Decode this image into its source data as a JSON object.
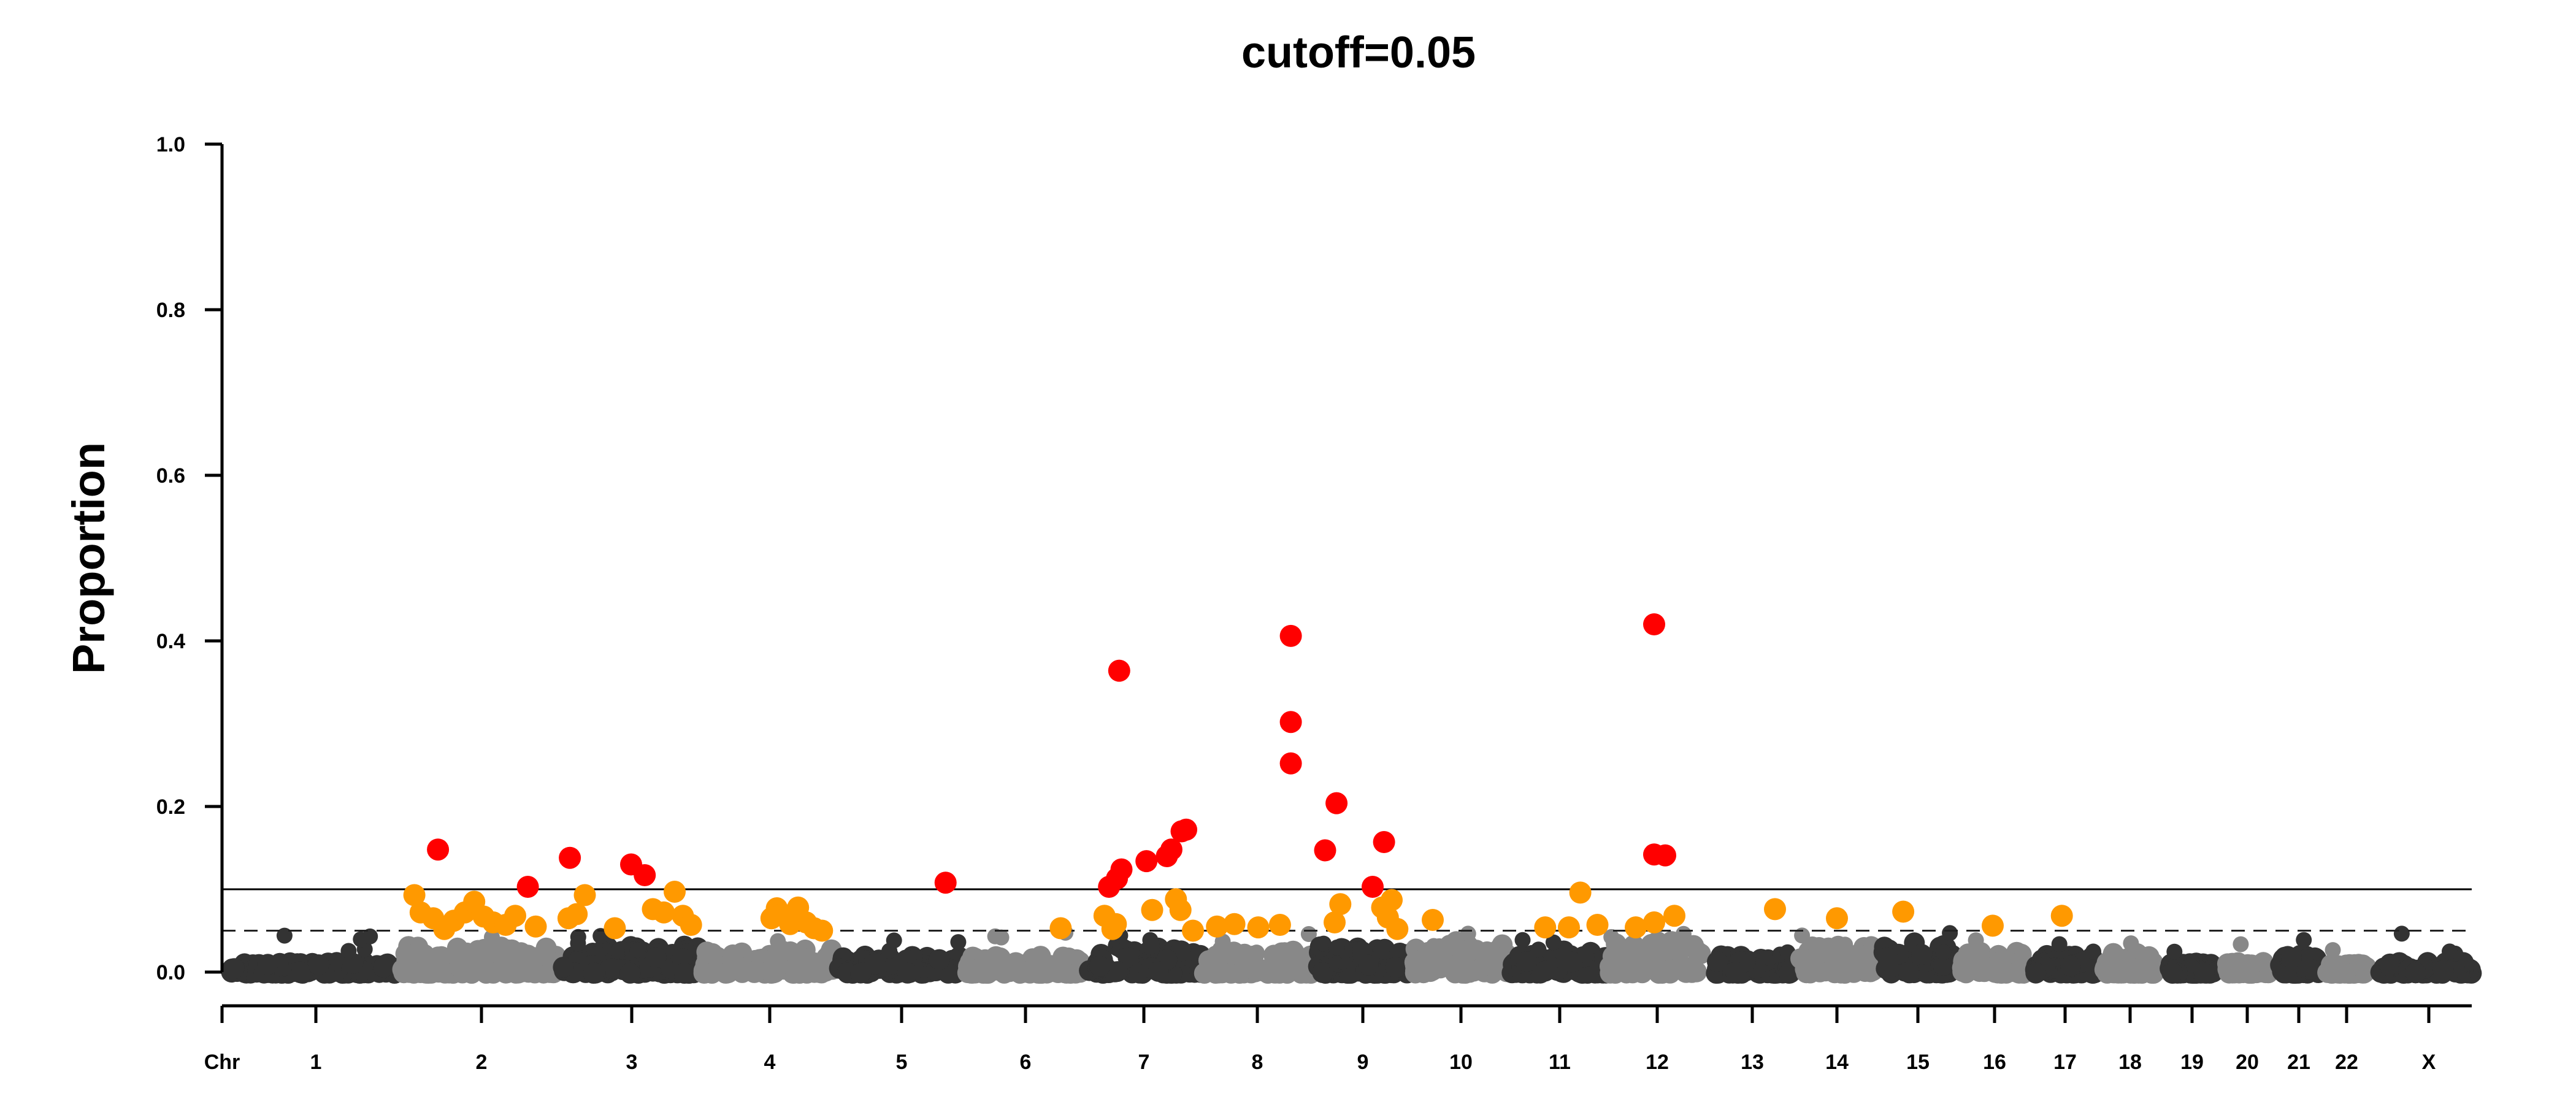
{
  "chart_data": {
    "type": "scatter",
    "title": "cutoff=0.05",
    "ylabel": "Proportion",
    "xlabel": "",
    "ylim": [
      0,
      1
    ],
    "y_ticks": [
      "0.0",
      "0.2",
      "0.4",
      "0.6",
      "0.8",
      "1.0"
    ],
    "x_axis_prefix": "Chr",
    "chromosomes": [
      "1",
      "2",
      "3",
      "4",
      "5",
      "6",
      "7",
      "8",
      "9",
      "10",
      "11",
      "12",
      "13",
      "14",
      "15",
      "16",
      "17",
      "18",
      "19",
      "20",
      "21",
      "22",
      "X"
    ],
    "chromosome_shades": [
      "#333333",
      "#888888"
    ],
    "threshold_lines": [
      {
        "value": 0.1,
        "style": "solid"
      },
      {
        "value": 0.05,
        "style": "dashed"
      }
    ],
    "colors": {
      "high": "#ff0000",
      "moderate": "#ff9900",
      "axis": "#000000"
    },
    "highlighted_points": [
      {
        "chr": "2",
        "pos": 0.23,
        "y": 0.148,
        "level": "high"
      },
      {
        "chr": "2",
        "pos": 0.8,
        "y": 0.103,
        "level": "high"
      },
      {
        "chr": "2",
        "pos": 0.08,
        "y": 0.093,
        "level": "moderate"
      },
      {
        "chr": "2",
        "pos": 0.12,
        "y": 0.072,
        "level": "moderate"
      },
      {
        "chr": "2",
        "pos": 0.2,
        "y": 0.065,
        "level": "moderate"
      },
      {
        "chr": "2",
        "pos": 0.27,
        "y": 0.052,
        "level": "moderate"
      },
      {
        "chr": "2",
        "pos": 0.33,
        "y": 0.062,
        "level": "moderate"
      },
      {
        "chr": "2",
        "pos": 0.4,
        "y": 0.072,
        "level": "moderate"
      },
      {
        "chr": "2",
        "pos": 0.46,
        "y": 0.085,
        "level": "moderate"
      },
      {
        "chr": "2",
        "pos": 0.52,
        "y": 0.067,
        "level": "moderate"
      },
      {
        "chr": "2",
        "pos": 0.58,
        "y": 0.06,
        "level": "moderate"
      },
      {
        "chr": "2",
        "pos": 0.66,
        "y": 0.057,
        "level": "moderate"
      },
      {
        "chr": "2",
        "pos": 0.72,
        "y": 0.068,
        "level": "moderate"
      },
      {
        "chr": "2",
        "pos": 0.85,
        "y": 0.055,
        "level": "moderate"
      },
      {
        "chr": "3",
        "pos": 0.05,
        "y": 0.138,
        "level": "high"
      },
      {
        "chr": "3",
        "pos": 0.5,
        "y": 0.13,
        "level": "high"
      },
      {
        "chr": "3",
        "pos": 0.6,
        "y": 0.117,
        "level": "high"
      },
      {
        "chr": "3",
        "pos": 0.04,
        "y": 0.065,
        "level": "moderate"
      },
      {
        "chr": "3",
        "pos": 0.1,
        "y": 0.07,
        "level": "moderate"
      },
      {
        "chr": "3",
        "pos": 0.16,
        "y": 0.093,
        "level": "moderate"
      },
      {
        "chr": "3",
        "pos": 0.38,
        "y": 0.053,
        "level": "moderate"
      },
      {
        "chr": "3",
        "pos": 0.66,
        "y": 0.076,
        "level": "moderate"
      },
      {
        "chr": "3",
        "pos": 0.74,
        "y": 0.072,
        "level": "moderate"
      },
      {
        "chr": "3",
        "pos": 0.82,
        "y": 0.097,
        "level": "moderate"
      },
      {
        "chr": "3",
        "pos": 0.88,
        "y": 0.068,
        "level": "moderate"
      },
      {
        "chr": "3",
        "pos": 0.94,
        "y": 0.057,
        "level": "moderate"
      },
      {
        "chr": "4",
        "pos": 0.52,
        "y": 0.065,
        "level": "moderate"
      },
      {
        "chr": "4",
        "pos": 0.56,
        "y": 0.077,
        "level": "moderate"
      },
      {
        "chr": "4",
        "pos": 0.6,
        "y": 0.07,
        "level": "moderate"
      },
      {
        "chr": "4",
        "pos": 0.66,
        "y": 0.058,
        "level": "moderate"
      },
      {
        "chr": "4",
        "pos": 0.72,
        "y": 0.078,
        "level": "moderate"
      },
      {
        "chr": "4",
        "pos": 0.78,
        "y": 0.06,
        "level": "moderate"
      },
      {
        "chr": "4",
        "pos": 0.84,
        "y": 0.053,
        "level": "moderate"
      },
      {
        "chr": "4",
        "pos": 0.9,
        "y": 0.05,
        "level": "moderate"
      },
      {
        "chr": "5",
        "pos": 0.86,
        "y": 0.108,
        "level": "high"
      },
      {
        "chr": "6",
        "pos": 0.8,
        "y": 0.053,
        "level": "moderate"
      },
      {
        "chr": "7",
        "pos": 0.19,
        "y": 0.103,
        "level": "high"
      },
      {
        "chr": "7",
        "pos": 0.26,
        "y": 0.113,
        "level": "high"
      },
      {
        "chr": "7",
        "pos": 0.3,
        "y": 0.124,
        "level": "high"
      },
      {
        "chr": "7",
        "pos": 0.28,
        "y": 0.364,
        "level": "high"
      },
      {
        "chr": "7",
        "pos": 0.52,
        "y": 0.134,
        "level": "high"
      },
      {
        "chr": "7",
        "pos": 0.7,
        "y": 0.14,
        "level": "high"
      },
      {
        "chr": "7",
        "pos": 0.74,
        "y": 0.148,
        "level": "high"
      },
      {
        "chr": "7",
        "pos": 0.83,
        "y": 0.17,
        "level": "high"
      },
      {
        "chr": "7",
        "pos": 0.87,
        "y": 0.172,
        "level": "high"
      },
      {
        "chr": "7",
        "pos": 0.15,
        "y": 0.068,
        "level": "moderate"
      },
      {
        "chr": "7",
        "pos": 0.22,
        "y": 0.052,
        "level": "moderate"
      },
      {
        "chr": "7",
        "pos": 0.25,
        "y": 0.058,
        "level": "moderate"
      },
      {
        "chr": "7",
        "pos": 0.57,
        "y": 0.075,
        "level": "moderate"
      },
      {
        "chr": "7",
        "pos": 0.78,
        "y": 0.088,
        "level": "moderate"
      },
      {
        "chr": "7",
        "pos": 0.82,
        "y": 0.075,
        "level": "moderate"
      },
      {
        "chr": "7",
        "pos": 0.93,
        "y": 0.05,
        "level": "moderate"
      },
      {
        "chr": "8",
        "pos": 0.12,
        "y": 0.055,
        "level": "moderate"
      },
      {
        "chr": "8",
        "pos": 0.28,
        "y": 0.058,
        "level": "moderate"
      },
      {
        "chr": "8",
        "pos": 0.5,
        "y": 0.054,
        "level": "moderate"
      },
      {
        "chr": "8",
        "pos": 0.7,
        "y": 0.057,
        "level": "moderate"
      },
      {
        "chr": "8",
        "pos": 0.8,
        "y": 0.252,
        "level": "high"
      },
      {
        "chr": "8",
        "pos": 0.8,
        "y": 0.302,
        "level": "high"
      },
      {
        "chr": "8",
        "pos": 0.8,
        "y": 0.406,
        "level": "high"
      },
      {
        "chr": "9",
        "pos": 0.1,
        "y": 0.147,
        "level": "high"
      },
      {
        "chr": "9",
        "pos": 0.22,
        "y": 0.204,
        "level": "high"
      },
      {
        "chr": "9",
        "pos": 0.6,
        "y": 0.103,
        "level": "high"
      },
      {
        "chr": "9",
        "pos": 0.72,
        "y": 0.157,
        "level": "high"
      },
      {
        "chr": "9",
        "pos": 0.2,
        "y": 0.06,
        "level": "moderate"
      },
      {
        "chr": "9",
        "pos": 0.26,
        "y": 0.082,
        "level": "moderate"
      },
      {
        "chr": "9",
        "pos": 0.7,
        "y": 0.078,
        "level": "moderate"
      },
      {
        "chr": "9",
        "pos": 0.76,
        "y": 0.066,
        "level": "moderate"
      },
      {
        "chr": "9",
        "pos": 0.8,
        "y": 0.087,
        "level": "moderate"
      },
      {
        "chr": "9",
        "pos": 0.86,
        "y": 0.052,
        "level": "moderate"
      },
      {
        "chr": "10",
        "pos": 0.2,
        "y": 0.063,
        "level": "moderate"
      },
      {
        "chr": "11",
        "pos": 0.35,
        "y": 0.054,
        "level": "moderate"
      },
      {
        "chr": "11",
        "pos": 0.6,
        "y": 0.054,
        "level": "moderate"
      },
      {
        "chr": "11",
        "pos": 0.72,
        "y": 0.096,
        "level": "moderate"
      },
      {
        "chr": "11",
        "pos": 0.9,
        "y": 0.057,
        "level": "moderate"
      },
      {
        "chr": "12",
        "pos": 0.28,
        "y": 0.054,
        "level": "moderate"
      },
      {
        "chr": "12",
        "pos": 0.48,
        "y": 0.06,
        "level": "moderate"
      },
      {
        "chr": "12",
        "pos": 0.7,
        "y": 0.068,
        "level": "moderate"
      },
      {
        "chr": "12",
        "pos": 0.48,
        "y": 0.142,
        "level": "high"
      },
      {
        "chr": "12",
        "pos": 0.6,
        "y": 0.141,
        "level": "high"
      },
      {
        "chr": "12",
        "pos": 0.48,
        "y": 0.42,
        "level": "high"
      },
      {
        "chr": "13",
        "pos": 0.8,
        "y": 0.076,
        "level": "moderate"
      },
      {
        "chr": "14",
        "pos": 0.5,
        "y": 0.065,
        "level": "moderate"
      },
      {
        "chr": "15",
        "pos": 0.3,
        "y": 0.073,
        "level": "moderate"
      },
      {
        "chr": "16",
        "pos": 0.5,
        "y": 0.056,
        "level": "moderate"
      },
      {
        "chr": "17",
        "pos": 0.45,
        "y": 0.068,
        "level": "moderate"
      }
    ]
  }
}
